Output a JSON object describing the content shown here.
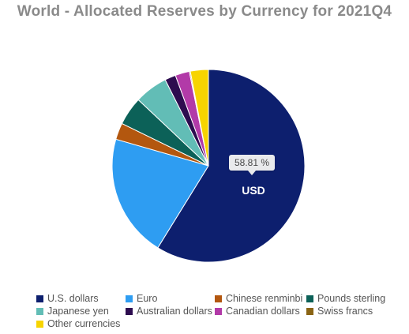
{
  "chart_data": {
    "type": "pie",
    "title": "World - Allocated Reserves by Currency for 2021Q4",
    "slices": [
      {
        "name": "U.S. dollars",
        "value": 58.81,
        "color": "#0d1f6e"
      },
      {
        "name": "Euro",
        "value": 20.64,
        "color": "#2e9df2"
      },
      {
        "name": "Chinese renminbi",
        "value": 2.79,
        "color": "#b3570f"
      },
      {
        "name": "Pounds sterling",
        "value": 4.78,
        "color": "#0c6158"
      },
      {
        "name": "Japanese yen",
        "value": 5.57,
        "color": "#62bdb6"
      },
      {
        "name": "Australian dollars",
        "value": 1.84,
        "color": "#2d0c4f"
      },
      {
        "name": "Canadian dollars",
        "value": 2.38,
        "color": "#b23aa8"
      },
      {
        "name": "Swiss francs",
        "value": 0.17,
        "color": "#8a6414"
      },
      {
        "name": "Other currencies",
        "value": 3.02,
        "color": "#f7d400"
      }
    ],
    "tooltip": {
      "value_text": "58.81 %",
      "label": "USD"
    }
  }
}
